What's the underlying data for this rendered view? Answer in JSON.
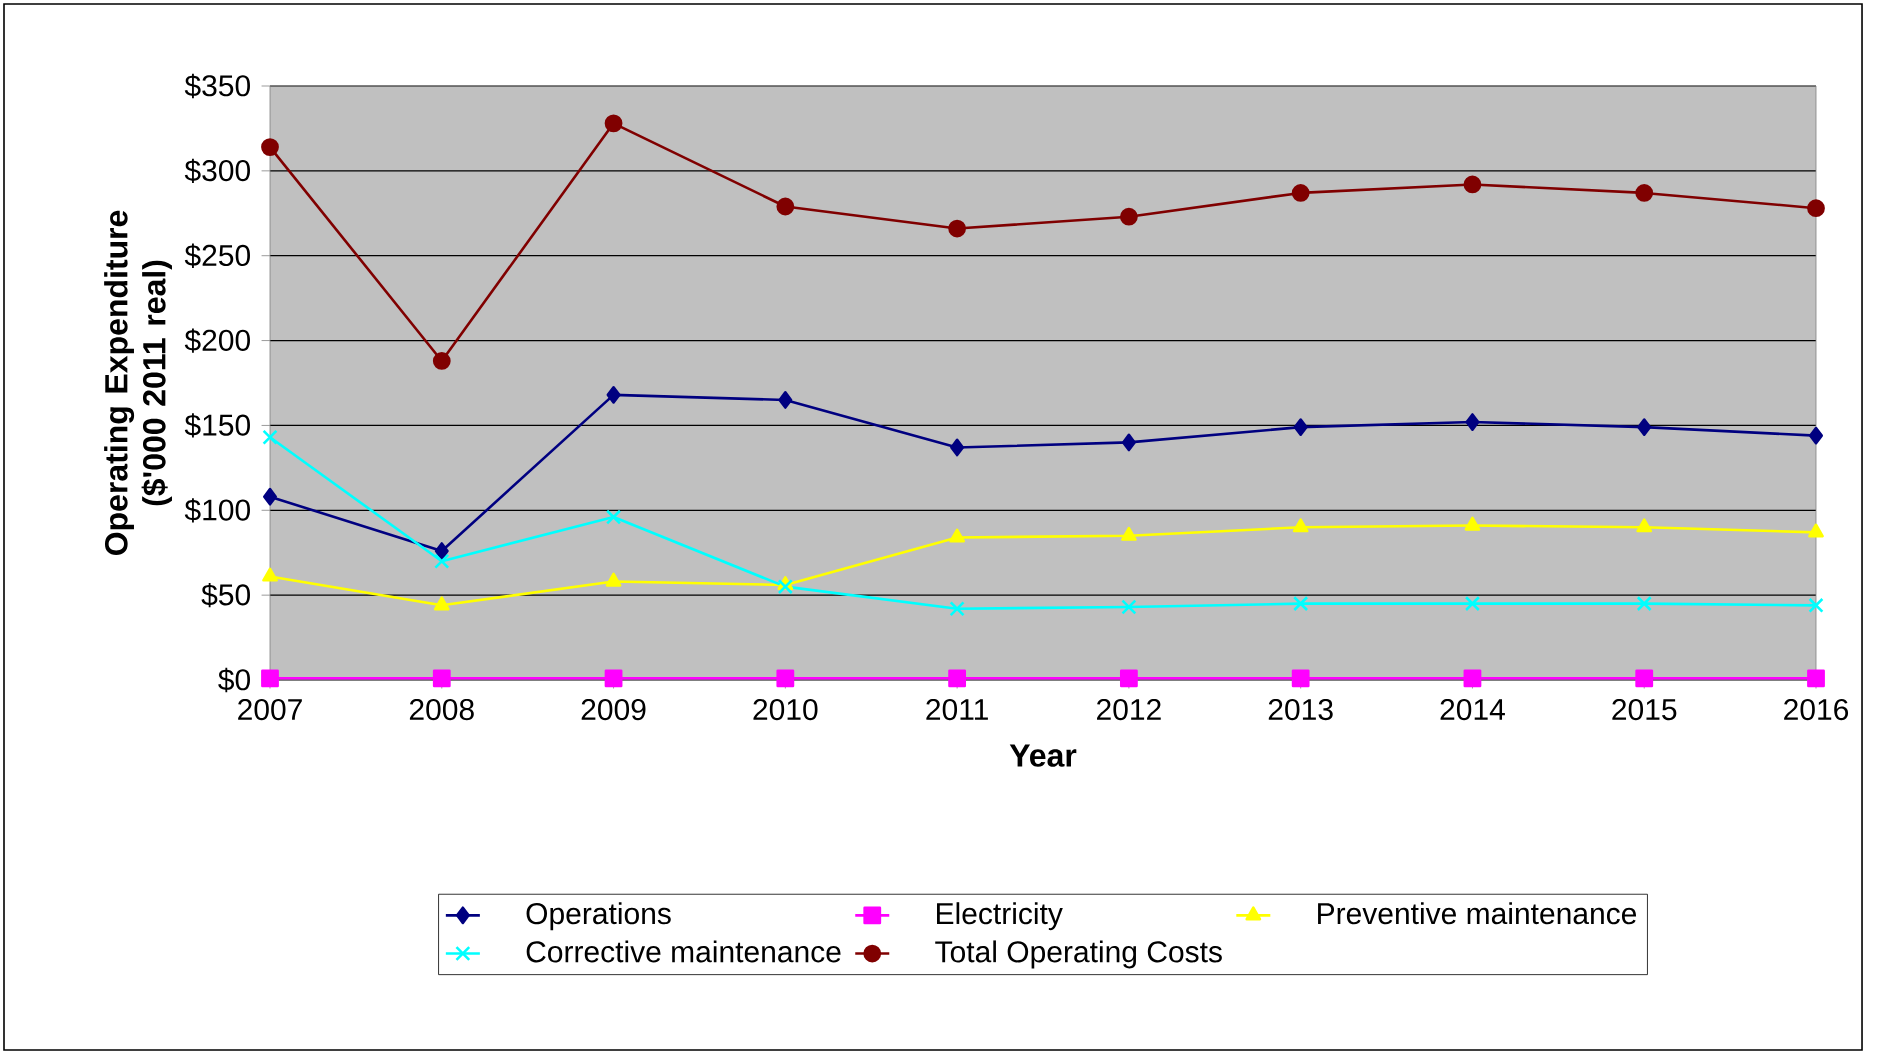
{
  "chart_data": {
    "type": "line",
    "xlabel": "Year",
    "ylabel": "Operating Expenditure ($'000 2011 real)",
    "x": [
      2007,
      2008,
      2009,
      2010,
      2011,
      2012,
      2013,
      2014,
      2015,
      2016
    ],
    "xlim": [
      2007,
      2016
    ],
    "xticks": [
      2007,
      2008,
      2009,
      2010,
      2011,
      2012,
      2013,
      2014,
      2015,
      2016
    ],
    "ylim": [
      0,
      350
    ],
    "yticks": [
      {
        "value": 0,
        "label": "$0"
      },
      {
        "value": 50,
        "label": "$50"
      },
      {
        "value": 100,
        "label": "$100"
      },
      {
        "value": 150,
        "label": "$150"
      },
      {
        "value": 200,
        "label": "$200"
      },
      {
        "value": 250,
        "label": "$250"
      },
      {
        "value": 300,
        "label": "$300"
      },
      {
        "value": 350,
        "label": "$350"
      }
    ],
    "grid": "y",
    "legend": "bottom",
    "series": [
      {
        "name": "Operations",
        "color": "#000080",
        "marker": "diamond",
        "values": [
          108,
          76,
          168,
          165,
          137,
          140,
          149,
          152,
          149,
          144
        ]
      },
      {
        "name": "Electricity",
        "color": "#ff00ff",
        "marker": "square",
        "values": [
          1,
          1,
          1,
          1,
          1,
          1,
          1,
          1,
          1,
          1
        ]
      },
      {
        "name": "Preventive maintenance",
        "color": "#ffff00",
        "marker": "triangle",
        "values": [
          61,
          44,
          58,
          56,
          84,
          85,
          90,
          91,
          90,
          87
        ]
      },
      {
        "name": "Corrective maintenance",
        "color": "#00ffff",
        "marker": "cross",
        "values": [
          143,
          70,
          96,
          55,
          42,
          43,
          45,
          45,
          45,
          44
        ]
      },
      {
        "name": "Total Operating Costs",
        "color": "#800000",
        "marker": "circle",
        "values": [
          314,
          188,
          328,
          279,
          266,
          273,
          287,
          292,
          287,
          278
        ]
      }
    ]
  }
}
